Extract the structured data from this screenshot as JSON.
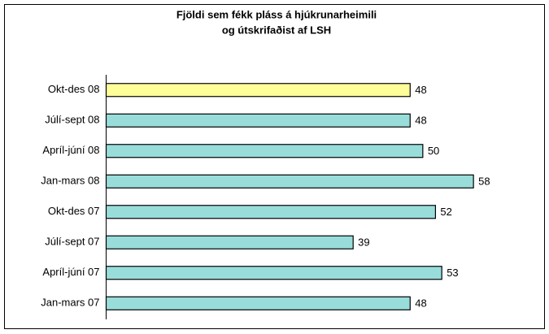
{
  "chart_data": {
    "type": "hbar",
    "title": [
      "Fjöldi  sem fékk pláss á hjúkrunarheimili",
      "og útskrifaðist af LSH"
    ],
    "categories": [
      "Okt-des 08",
      "Júlí-sept 08",
      "Apríl-júní 08",
      "Jan-mars 08",
      "Okt-des 07",
      "Júlí-sept 07",
      "Apríl-júní 07",
      "Jan-mars 07"
    ],
    "values": [
      48,
      48,
      50,
      58,
      52,
      39,
      53,
      48
    ],
    "colors": [
      "#ffff99",
      "#99dddb",
      "#99dddb",
      "#99dddb",
      "#99dddb",
      "#99dddb",
      "#99dddb",
      "#99dddb"
    ],
    "xlim": [
      0,
      68
    ]
  }
}
